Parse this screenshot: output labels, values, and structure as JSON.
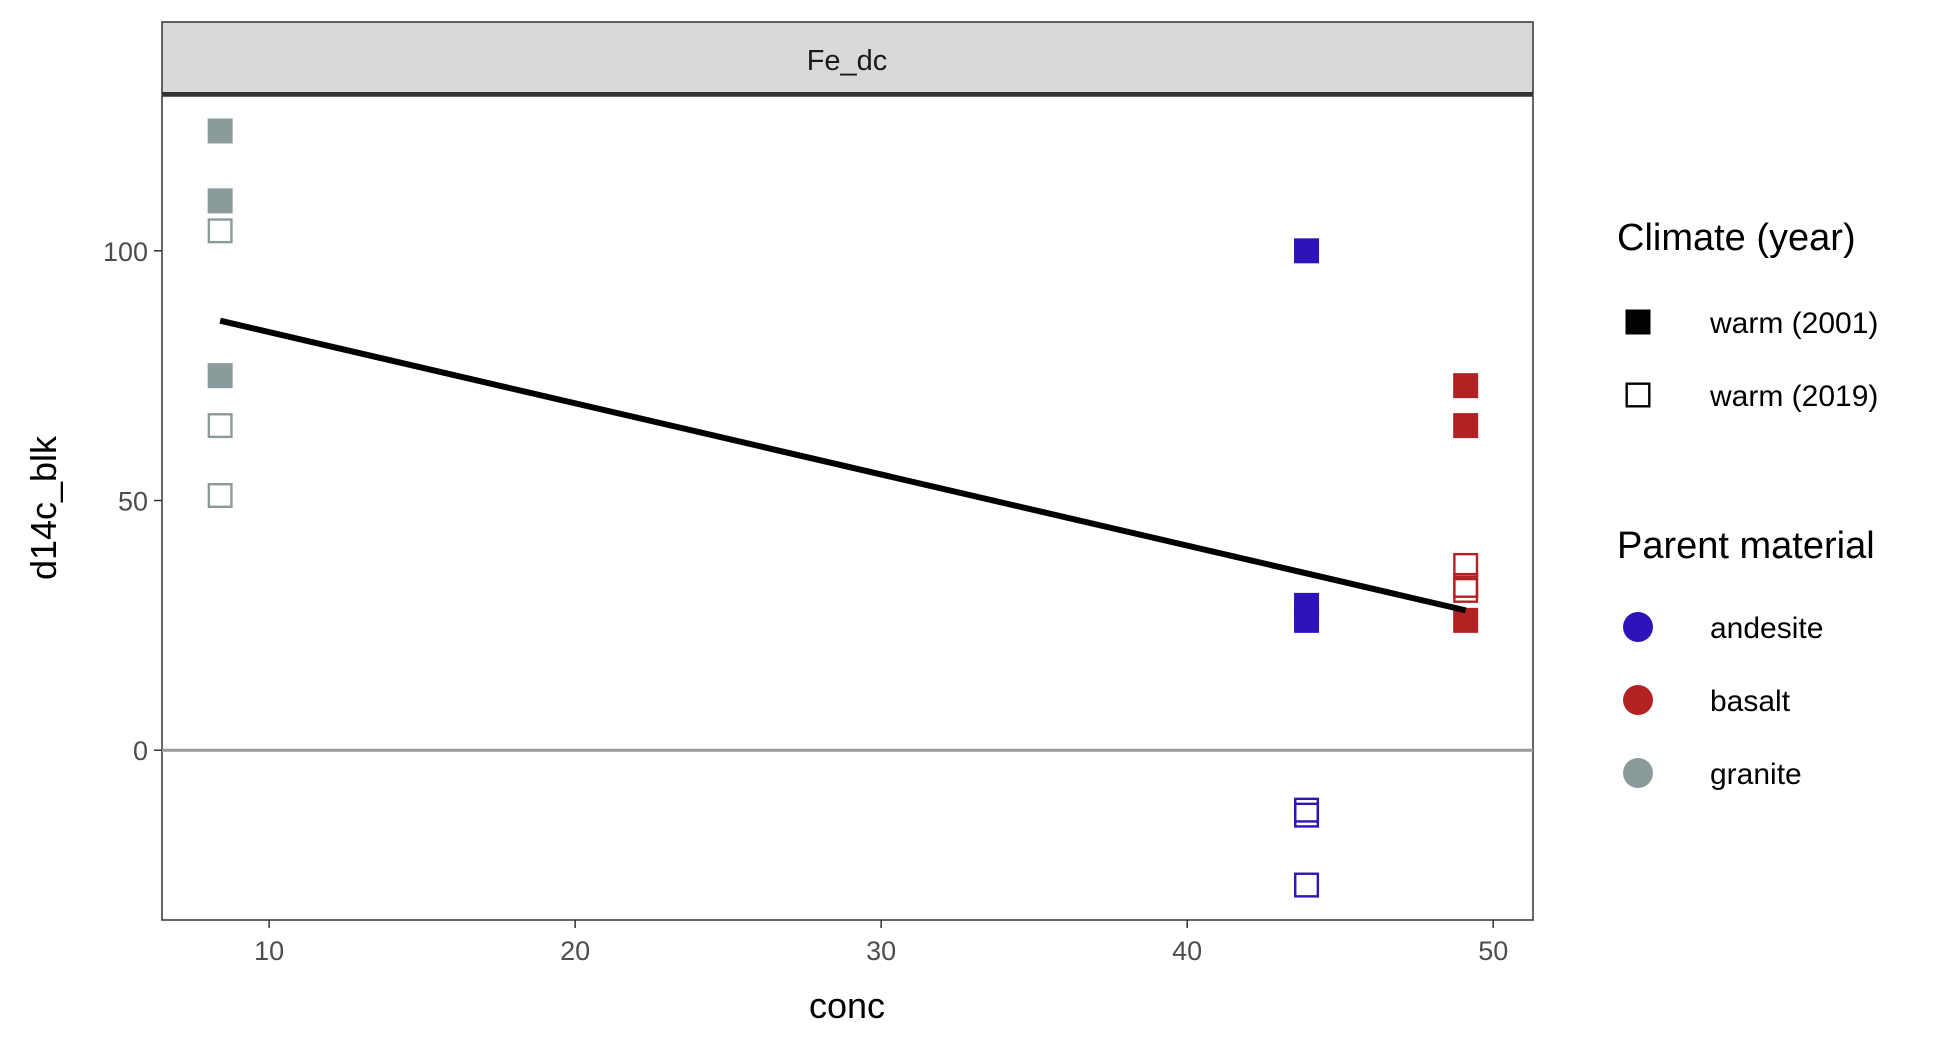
{
  "chart_data": {
    "type": "scatter",
    "facet_label": "Fe_dc",
    "xlabel": "conc",
    "ylabel": "d14c_blk",
    "xlim": [
      6.5,
      51.3
    ],
    "ylim": [
      -34,
      131
    ],
    "x_ticks": [
      10,
      20,
      30,
      40,
      50
    ],
    "y_ticks": [
      0,
      50,
      100
    ],
    "hline_y": 0,
    "grid": false,
    "legend_position": "right",
    "legends": [
      {
        "title": "Climate (year)",
        "entries": [
          {
            "label": "warm (2001)",
            "shape": "filled-square"
          },
          {
            "label": "warm (2019)",
            "shape": "open-square"
          }
        ]
      },
      {
        "title": "Parent material",
        "entries": [
          {
            "label": "andesite",
            "color": "#2E14B8"
          },
          {
            "label": "basalt",
            "color": "#B22222"
          },
          {
            "label": "granite",
            "color": "#8B9A9A"
          }
        ]
      }
    ],
    "colors": {
      "andesite": "#2E14B8",
      "basalt": "#B22222",
      "granite": "#8B9A9A"
    },
    "trend_line": {
      "x": [
        8.4,
        49.1
      ],
      "y": [
        86,
        28
      ]
    },
    "series": [
      {
        "material": "granite",
        "climate": "warm (2001)",
        "points": [
          [
            8.4,
            124
          ],
          [
            8.4,
            110
          ],
          [
            8.4,
            75
          ]
        ]
      },
      {
        "material": "granite",
        "climate": "warm (2019)",
        "points": [
          [
            8.4,
            104
          ],
          [
            8.4,
            65
          ],
          [
            8.4,
            51
          ]
        ]
      },
      {
        "material": "andesite",
        "climate": "warm (2001)",
        "points": [
          [
            43.9,
            100
          ],
          [
            43.9,
            29
          ],
          [
            43.9,
            26
          ]
        ]
      },
      {
        "material": "andesite",
        "climate": "warm (2019)",
        "points": [
          [
            43.9,
            -12
          ],
          [
            43.9,
            -13
          ],
          [
            43.9,
            -27
          ]
        ]
      },
      {
        "material": "basalt",
        "climate": "warm (2001)",
        "points": [
          [
            49.1,
            73
          ],
          [
            49.1,
            65
          ],
          [
            49.1,
            26
          ]
        ]
      },
      {
        "material": "basalt",
        "climate": "warm (2019)",
        "points": [
          [
            49.1,
            37
          ],
          [
            49.1,
            33
          ],
          [
            49.1,
            32
          ]
        ]
      }
    ]
  }
}
